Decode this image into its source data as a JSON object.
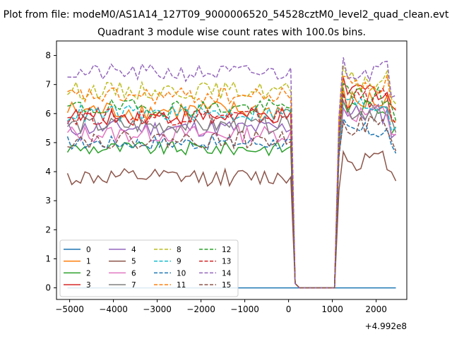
{
  "suptitle": "Plot from file: modeM0/AS1A14_127T09_9000006520_54528cztM0_level2_quad_clean.evt",
  "chart_data": {
    "type": "line",
    "title": "Quadrant 3 module wise count rates with 100.0s bins.",
    "xlabel": "",
    "ylabel": "",
    "x_offset_label": "+4.992e8",
    "xlim": [
      -5300,
      2700
    ],
    "ylim": [
      -0.4,
      8.5
    ],
    "xticks": [
      -5000,
      -4000,
      -3000,
      -2000,
      -1000,
      0,
      1000,
      2000
    ],
    "xtick_labels": [
      "−5000",
      "−4000",
      "−3000",
      "−2000",
      "−1000",
      "0",
      "1000",
      "2000"
    ],
    "yticks": [
      0,
      1,
      2,
      3,
      4,
      5,
      6,
      7,
      8
    ],
    "ytick_labels": [
      "0",
      "1",
      "2",
      "3",
      "4",
      "5",
      "6",
      "7",
      "8"
    ],
    "legend_location": "lower-left",
    "legend_columns": 4,
    "x_start": -5050,
    "bin": 100,
    "series": [
      {
        "name": "0",
        "color": "#1f77b4",
        "dash": "solid",
        "level": 0.0,
        "amp": 0.0,
        "post": 0.0
      },
      {
        "name": "1",
        "color": "#ff7f0e",
        "dash": "solid",
        "level": 6.1,
        "amp": 0.35,
        "post": 6.4
      },
      {
        "name": "2",
        "color": "#2ca02c",
        "dash": "solid",
        "level": 4.8,
        "amp": 0.25,
        "post": 6.2
      },
      {
        "name": "3",
        "color": "#d62728",
        "dash": "solid",
        "level": 5.9,
        "amp": 0.3,
        "post": 6.8
      },
      {
        "name": "4",
        "color": "#9467bd",
        "dash": "solid",
        "level": 5.5,
        "amp": 0.3,
        "post": 6.0
      },
      {
        "name": "5",
        "color": "#8c564b",
        "dash": "solid",
        "level": 3.8,
        "amp": 0.3,
        "post": 4.4
      },
      {
        "name": "6",
        "color": "#e377c2",
        "dash": "solid",
        "level": 5.3,
        "amp": 0.3,
        "post": 6.0
      },
      {
        "name": "7",
        "color": "#7f7f7f",
        "dash": "solid",
        "level": 5.6,
        "amp": 0.3,
        "post": 6.1
      },
      {
        "name": "8",
        "color": "#bcbd22",
        "dash": "dash",
        "level": 6.8,
        "amp": 0.3,
        "post": 7.1
      },
      {
        "name": "9",
        "color": "#17becf",
        "dash": "dash",
        "level": 6.0,
        "amp": 0.3,
        "post": 6.3
      },
      {
        "name": "10",
        "color": "#1f77b4",
        "dash": "dash",
        "level": 5.0,
        "amp": 0.25,
        "post": 5.4
      },
      {
        "name": "11",
        "color": "#ff7f0e",
        "dash": "dash",
        "level": 6.6,
        "amp": 0.3,
        "post": 7.0
      },
      {
        "name": "12",
        "color": "#2ca02c",
        "dash": "dash",
        "level": 6.2,
        "amp": 0.3,
        "post": 6.6
      },
      {
        "name": "13",
        "color": "#d62728",
        "dash": "dash",
        "level": 5.9,
        "amp": 0.3,
        "post": 6.5
      },
      {
        "name": "14",
        "color": "#9467bd",
        "dash": "dash",
        "level": 7.4,
        "amp": 0.3,
        "post": 7.5
      },
      {
        "name": "15",
        "color": "#8c564b",
        "dash": "dash",
        "level": 5.1,
        "amp": 0.3,
        "post": 5.6
      }
    ]
  }
}
